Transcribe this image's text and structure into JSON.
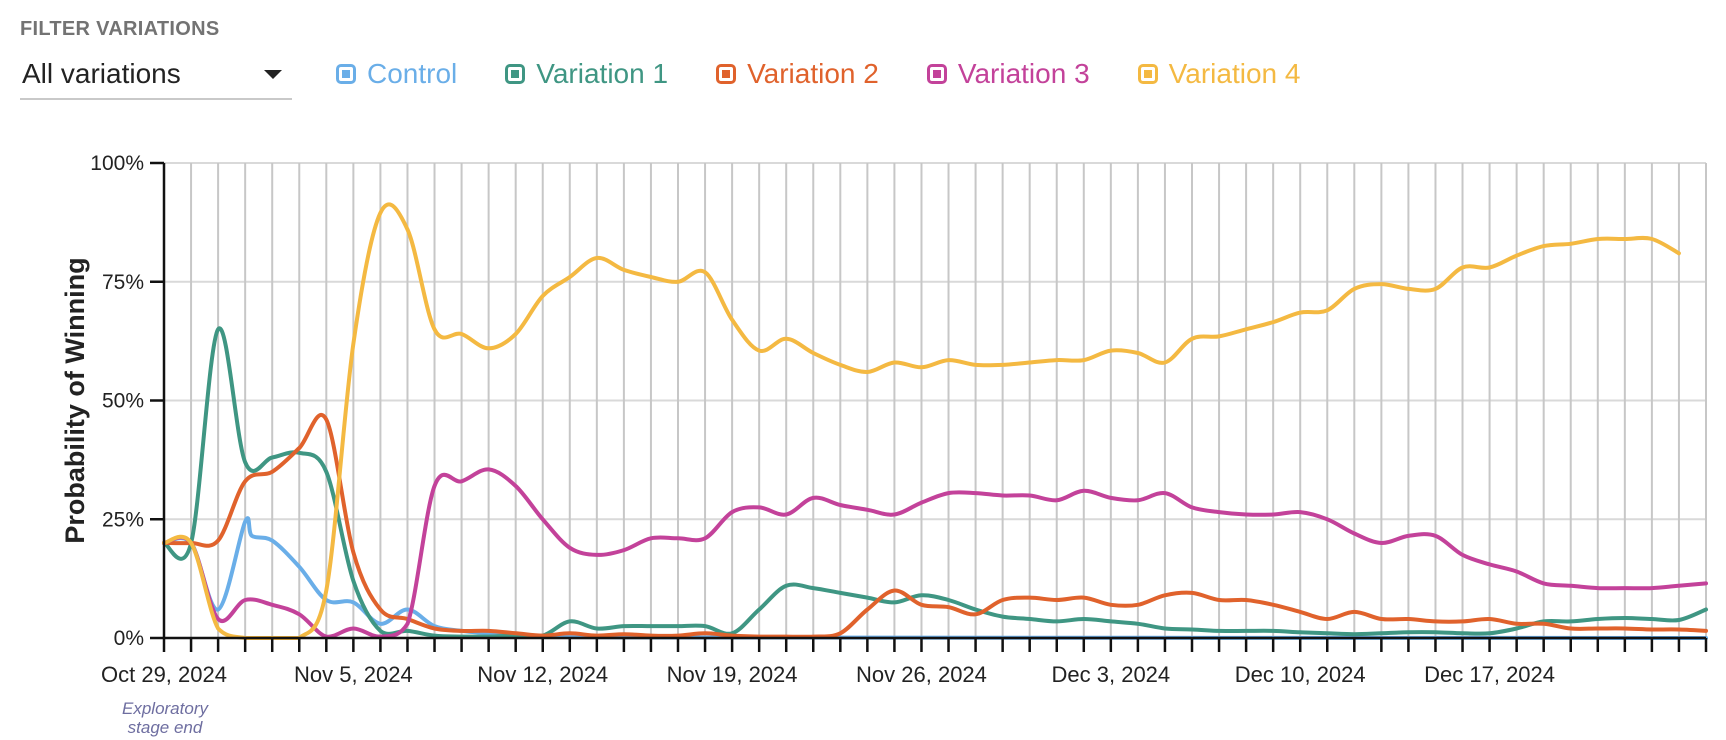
{
  "filter": {
    "header": "FILTER VARIATIONS",
    "selected": "All variations"
  },
  "legend": [
    {
      "label": "Control",
      "color": "#6aaee8"
    },
    {
      "label": "Variation 1",
      "color": "#3f9683"
    },
    {
      "label": "Variation 2",
      "color": "#e0622c"
    },
    {
      "label": "Variation 3",
      "color": "#c3429a"
    },
    {
      "label": "Variation 4",
      "color": "#f4b942"
    }
  ],
  "chart_data": {
    "type": "line",
    "title": "",
    "xlabel": "",
    "ylabel": "Probability of Winning",
    "ylim": [
      0,
      100
    ],
    "y_ticks": [
      0,
      25,
      50,
      75,
      100
    ],
    "y_tick_labels": [
      "0%",
      "25%",
      "50%",
      "75%",
      "100%"
    ],
    "x_start": "2024-10-29",
    "x_tick_labels": [
      {
        "date": "2024-10-29",
        "label": "Oct 29, 2024"
      },
      {
        "date": "2024-11-05",
        "label": "Nov 5, 2024"
      },
      {
        "date": "2024-11-12",
        "label": "Nov 12, 2024"
      },
      {
        "date": "2024-11-19",
        "label": "Nov 19, 2024"
      },
      {
        "date": "2024-11-26",
        "label": "Nov 26, 2024"
      },
      {
        "date": "2024-12-03",
        "label": "Dec 3, 2024"
      },
      {
        "date": "2024-12-10",
        "label": "Dec 10, 2024"
      },
      {
        "date": "2024-12-17",
        "label": "Dec 17, 2024"
      }
    ],
    "grid": {
      "vertical": true,
      "horizontal": true
    },
    "annotation": {
      "date": "2024-10-29",
      "lines": [
        "Exploratory",
        "stage end"
      ]
    },
    "update_dates": [
      "2024-10-30",
      "2024-10-31",
      "2024-11-01",
      "2024-11-02",
      "2024-11-03",
      "2024-11-04",
      "2024-11-05",
      "2024-11-06",
      "2024-11-07",
      "2024-11-08",
      "2024-11-09",
      "2024-11-10",
      "2024-11-11",
      "2024-11-12",
      "2024-11-13",
      "2024-11-14",
      "2024-11-15",
      "2024-11-16",
      "2024-11-17",
      "2024-11-18",
      "2024-11-19",
      "2024-11-20",
      "2024-11-21",
      "2024-11-22",
      "2024-11-23",
      "2024-11-24",
      "2024-11-25",
      "2024-11-26",
      "2024-11-27",
      "2024-11-28",
      "2024-11-29",
      "2024-11-30",
      "2024-12-01",
      "2024-12-02",
      "2024-12-03",
      "2024-12-04",
      "2024-12-05",
      "2024-12-06",
      "2024-12-07",
      "2024-12-08",
      "2024-12-09",
      "2024-12-10",
      "2024-12-11",
      "2024-12-12",
      "2024-12-13",
      "2024-12-14",
      "2024-12-15",
      "2024-12-16",
      "2024-12-17",
      "2024-12-18",
      "2024-12-19",
      "2024-12-20",
      "2024-12-21",
      "2024-12-22",
      "2024-12-23",
      "2024-12-24",
      "2024-12-25"
    ],
    "series": [
      {
        "name": "Control",
        "color": "#6aaee8",
        "points": [
          [
            "2024-10-29",
            20
          ],
          [
            "2024-10-30",
            20
          ],
          [
            "2024-10-31",
            6
          ],
          [
            "2024-11-01",
            24.5
          ],
          [
            "2024-11-01T06:00",
            21.5
          ],
          [
            "2024-11-02",
            20.5
          ],
          [
            "2024-11-03",
            15
          ],
          [
            "2024-11-04",
            8
          ],
          [
            "2024-11-05",
            7.5
          ],
          [
            "2024-11-06",
            3
          ],
          [
            "2024-11-07",
            6
          ],
          [
            "2024-11-08",
            2.5
          ],
          [
            "2024-11-09",
            1.5
          ],
          [
            "2024-11-10",
            1
          ],
          [
            "2024-11-11",
            0.5
          ],
          [
            "2024-11-12",
            0.3
          ],
          [
            "2024-11-19",
            0.1
          ],
          [
            "2024-12-25",
            0
          ]
        ]
      },
      {
        "name": "Variation 1",
        "color": "#3f9683",
        "points": [
          [
            "2024-10-29",
            20
          ],
          [
            "2024-10-30",
            20
          ],
          [
            "2024-10-31",
            65
          ],
          [
            "2024-11-01",
            37
          ],
          [
            "2024-11-02",
            38
          ],
          [
            "2024-11-03",
            39
          ],
          [
            "2024-11-04",
            35
          ],
          [
            "2024-11-05",
            12
          ],
          [
            "2024-11-06",
            1.5
          ],
          [
            "2024-11-07",
            1.5
          ],
          [
            "2024-11-08",
            0.5
          ],
          [
            "2024-11-09",
            0.3
          ],
          [
            "2024-11-10",
            0.3
          ],
          [
            "2024-11-11",
            0.5
          ],
          [
            "2024-11-12",
            0.5
          ],
          [
            "2024-11-13",
            3.5
          ],
          [
            "2024-11-14",
            2
          ],
          [
            "2024-11-15",
            2.5
          ],
          [
            "2024-11-16",
            2.5
          ],
          [
            "2024-11-17",
            2.5
          ],
          [
            "2024-11-18",
            2.5
          ],
          [
            "2024-11-19",
            1
          ],
          [
            "2024-11-20",
            6
          ],
          [
            "2024-11-21",
            11
          ],
          [
            "2024-11-22",
            10.5
          ],
          [
            "2024-11-23",
            9.5
          ],
          [
            "2024-11-24",
            8.5
          ],
          [
            "2024-11-25",
            7.5
          ],
          [
            "2024-11-26",
            9
          ],
          [
            "2024-11-27",
            8
          ],
          [
            "2024-11-28",
            6
          ],
          [
            "2024-11-29",
            4.5
          ],
          [
            "2024-11-30",
            4
          ],
          [
            "2024-12-01",
            3.5
          ],
          [
            "2024-12-02",
            4
          ],
          [
            "2024-12-03",
            3.5
          ],
          [
            "2024-12-04",
            3
          ],
          [
            "2024-12-05",
            2
          ],
          [
            "2024-12-06",
            1.8
          ],
          [
            "2024-12-07",
            1.5
          ],
          [
            "2024-12-08",
            1.5
          ],
          [
            "2024-12-09",
            1.5
          ],
          [
            "2024-12-10",
            1.2
          ],
          [
            "2024-12-11",
            1
          ],
          [
            "2024-12-12",
            0.8
          ],
          [
            "2024-12-13",
            1
          ],
          [
            "2024-12-14",
            1.2
          ],
          [
            "2024-12-15",
            1.2
          ],
          [
            "2024-12-16",
            1
          ],
          [
            "2024-12-17",
            1
          ],
          [
            "2024-12-18",
            2
          ],
          [
            "2024-12-19",
            3.5
          ],
          [
            "2024-12-20",
            3.5
          ],
          [
            "2024-12-21",
            4
          ],
          [
            "2024-12-22",
            4.2
          ],
          [
            "2024-12-23",
            4
          ],
          [
            "2024-12-24",
            3.8
          ],
          [
            "2024-12-25",
            6
          ]
        ]
      },
      {
        "name": "Variation 2",
        "color": "#e0622c",
        "points": [
          [
            "2024-10-29",
            20
          ],
          [
            "2024-10-30",
            20
          ],
          [
            "2024-10-31",
            20.5
          ],
          [
            "2024-11-01",
            33
          ],
          [
            "2024-11-02",
            35
          ],
          [
            "2024-11-03",
            40
          ],
          [
            "2024-11-04",
            46
          ],
          [
            "2024-11-05",
            18
          ],
          [
            "2024-11-06",
            6
          ],
          [
            "2024-11-07",
            4
          ],
          [
            "2024-11-08",
            2
          ],
          [
            "2024-11-09",
            1.5
          ],
          [
            "2024-11-10",
            1.5
          ],
          [
            "2024-11-11",
            1
          ],
          [
            "2024-11-12",
            0.5
          ],
          [
            "2024-11-13",
            1
          ],
          [
            "2024-11-14",
            0.5
          ],
          [
            "2024-11-15",
            0.8
          ],
          [
            "2024-11-16",
            0.5
          ],
          [
            "2024-11-17",
            0.5
          ],
          [
            "2024-11-18",
            1
          ],
          [
            "2024-11-19",
            0.5
          ],
          [
            "2024-11-20",
            0.3
          ],
          [
            "2024-11-21",
            0.3
          ],
          [
            "2024-11-22",
            0.3
          ],
          [
            "2024-11-23",
            1
          ],
          [
            "2024-11-24",
            6
          ],
          [
            "2024-11-25",
            10
          ],
          [
            "2024-11-26",
            7
          ],
          [
            "2024-11-27",
            6.5
          ],
          [
            "2024-11-28",
            5
          ],
          [
            "2024-11-29",
            8
          ],
          [
            "2024-11-30",
            8.5
          ],
          [
            "2024-12-01",
            8
          ],
          [
            "2024-12-02",
            8.5
          ],
          [
            "2024-12-03",
            7
          ],
          [
            "2024-12-04",
            7
          ],
          [
            "2024-12-05",
            9
          ],
          [
            "2024-12-06",
            9.5
          ],
          [
            "2024-12-07",
            8
          ],
          [
            "2024-12-08",
            8
          ],
          [
            "2024-12-09",
            7
          ],
          [
            "2024-12-10",
            5.5
          ],
          [
            "2024-12-11",
            4
          ],
          [
            "2024-12-12",
            5.5
          ],
          [
            "2024-12-13",
            4
          ],
          [
            "2024-12-14",
            4
          ],
          [
            "2024-12-15",
            3.5
          ],
          [
            "2024-12-16",
            3.5
          ],
          [
            "2024-12-17",
            4
          ],
          [
            "2024-12-18",
            3
          ],
          [
            "2024-12-19",
            3
          ],
          [
            "2024-12-20",
            2
          ],
          [
            "2024-12-21",
            2
          ],
          [
            "2024-12-22",
            2
          ],
          [
            "2024-12-23",
            1.8
          ],
          [
            "2024-12-24",
            1.8
          ],
          [
            "2024-12-25",
            1.5
          ]
        ]
      },
      {
        "name": "Variation 3",
        "color": "#c3429a",
        "points": [
          [
            "2024-10-29",
            20
          ],
          [
            "2024-10-30",
            20
          ],
          [
            "2024-10-31",
            4
          ],
          [
            "2024-11-01",
            8
          ],
          [
            "2024-11-02",
            7
          ],
          [
            "2024-11-03",
            5
          ],
          [
            "2024-11-04",
            0.3
          ],
          [
            "2024-11-05",
            2
          ],
          [
            "2024-11-06",
            0.3
          ],
          [
            "2024-11-07",
            3
          ],
          [
            "2024-11-08",
            32
          ],
          [
            "2024-11-09",
            33
          ],
          [
            "2024-11-10",
            35.5
          ],
          [
            "2024-11-11",
            32
          ],
          [
            "2024-11-12",
            25
          ],
          [
            "2024-11-13",
            19
          ],
          [
            "2024-11-14",
            17.5
          ],
          [
            "2024-11-15",
            18.5
          ],
          [
            "2024-11-16",
            21
          ],
          [
            "2024-11-17",
            21
          ],
          [
            "2024-11-18",
            21
          ],
          [
            "2024-11-19",
            26.5
          ],
          [
            "2024-11-20",
            27.5
          ],
          [
            "2024-11-21",
            26
          ],
          [
            "2024-11-22",
            29.5
          ],
          [
            "2024-11-23",
            28
          ],
          [
            "2024-11-24",
            27
          ],
          [
            "2024-11-25",
            26
          ],
          [
            "2024-11-26",
            28.5
          ],
          [
            "2024-11-27",
            30.5
          ],
          [
            "2024-11-28",
            30.5
          ],
          [
            "2024-11-29",
            30
          ],
          [
            "2024-11-30",
            30
          ],
          [
            "2024-12-01",
            29
          ],
          [
            "2024-12-02",
            31
          ],
          [
            "2024-12-03",
            29.5
          ],
          [
            "2024-12-04",
            29
          ],
          [
            "2024-12-05",
            30.5
          ],
          [
            "2024-12-06",
            27.5
          ],
          [
            "2024-12-07",
            26.5
          ],
          [
            "2024-12-08",
            26
          ],
          [
            "2024-12-09",
            26
          ],
          [
            "2024-12-10",
            26.5
          ],
          [
            "2024-12-11",
            25
          ],
          [
            "2024-12-12",
            22
          ],
          [
            "2024-12-13",
            20
          ],
          [
            "2024-12-14",
            21.5
          ],
          [
            "2024-12-15",
            21.5
          ],
          [
            "2024-12-16",
            17.5
          ],
          [
            "2024-12-17",
            15.5
          ],
          [
            "2024-12-18",
            14
          ],
          [
            "2024-12-19",
            11.5
          ],
          [
            "2024-12-20",
            11
          ],
          [
            "2024-12-21",
            10.5
          ],
          [
            "2024-12-22",
            10.5
          ],
          [
            "2024-12-23",
            10.5
          ],
          [
            "2024-12-24",
            11
          ],
          [
            "2024-12-25",
            11.5
          ]
        ]
      },
      {
        "name": "Variation 4",
        "color": "#f4b942",
        "points": [
          [
            "2024-10-29",
            20
          ],
          [
            "2024-10-30",
            20
          ],
          [
            "2024-10-31",
            2
          ],
          [
            "2024-11-01",
            0
          ],
          [
            "2024-11-02",
            0
          ],
          [
            "2024-11-03",
            0
          ],
          [
            "2024-11-04",
            10
          ],
          [
            "2024-11-05",
            62
          ],
          [
            "2024-11-06",
            89.5
          ],
          [
            "2024-11-07",
            86
          ],
          [
            "2024-11-08",
            65
          ],
          [
            "2024-11-09",
            64
          ],
          [
            "2024-11-10",
            61
          ],
          [
            "2024-11-11",
            64
          ],
          [
            "2024-11-12",
            72
          ],
          [
            "2024-11-13",
            76
          ],
          [
            "2024-11-14",
            80
          ],
          [
            "2024-11-15",
            77.5
          ],
          [
            "2024-11-16",
            76
          ],
          [
            "2024-11-17",
            75
          ],
          [
            "2024-11-18",
            77
          ],
          [
            "2024-11-19",
            67
          ],
          [
            "2024-11-20",
            60.5
          ],
          [
            "2024-11-21",
            63
          ],
          [
            "2024-11-22",
            60
          ],
          [
            "2024-11-23",
            57.5
          ],
          [
            "2024-11-24",
            56
          ],
          [
            "2024-11-25",
            58
          ],
          [
            "2024-11-26",
            57
          ],
          [
            "2024-11-27",
            58.5
          ],
          [
            "2024-11-28",
            57.5
          ],
          [
            "2024-11-29",
            57.5
          ],
          [
            "2024-11-30",
            58
          ],
          [
            "2024-12-01",
            58.5
          ],
          [
            "2024-12-02",
            58.5
          ],
          [
            "2024-12-03",
            60.5
          ],
          [
            "2024-12-04",
            60
          ],
          [
            "2024-12-05",
            58
          ],
          [
            "2024-12-06",
            63
          ],
          [
            "2024-12-07",
            63.5
          ],
          [
            "2024-12-08",
            65
          ],
          [
            "2024-12-09",
            66.5
          ],
          [
            "2024-12-10",
            68.5
          ],
          [
            "2024-12-11",
            69
          ],
          [
            "2024-12-12",
            73.5
          ],
          [
            "2024-12-13",
            74.5
          ],
          [
            "2024-12-14",
            73.5
          ],
          [
            "2024-12-15",
            73.5
          ],
          [
            "2024-12-16",
            78
          ],
          [
            "2024-12-17",
            78
          ],
          [
            "2024-12-18",
            80.5
          ],
          [
            "2024-12-19",
            82.5
          ],
          [
            "2024-12-20",
            83
          ],
          [
            "2024-12-21",
            84
          ],
          [
            "2024-12-22",
            84
          ],
          [
            "2024-12-23",
            84
          ],
          [
            "2024-12-24",
            81
          ]
        ]
      }
    ]
  }
}
